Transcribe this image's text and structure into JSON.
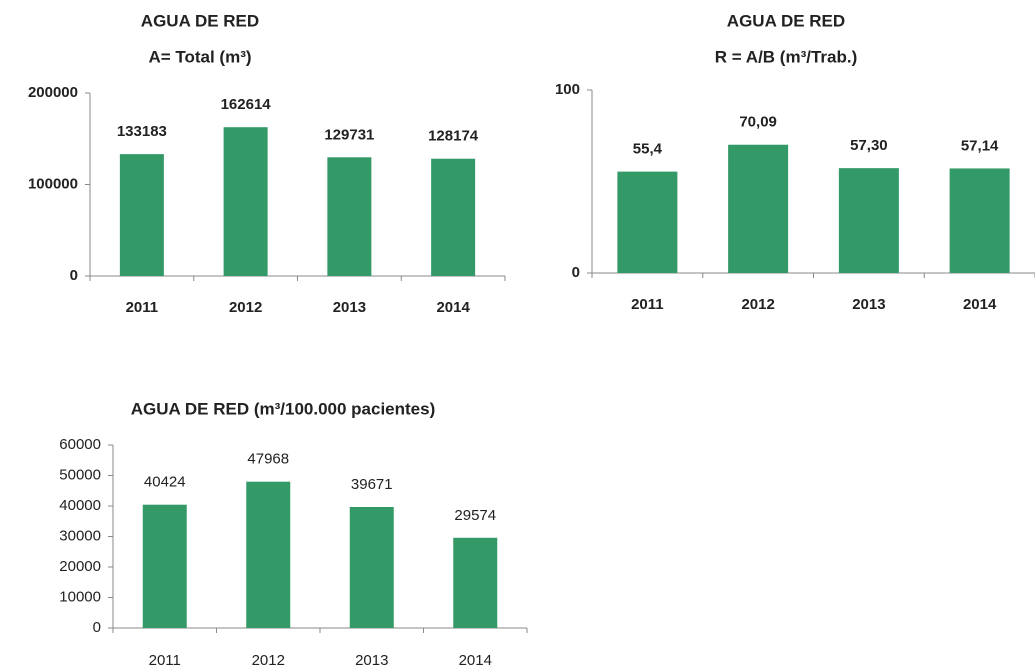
{
  "chart_data": [
    {
      "type": "bar",
      "title": "AGUA DE RED",
      "subtitle": "A= Total (m³)",
      "categories": [
        "2011",
        "2012",
        "2013",
        "2014"
      ],
      "values": [
        133183,
        162614,
        129731,
        128174
      ],
      "color": "#339966",
      "ylim": [
        0,
        200000
      ],
      "yticks": [
        0,
        100000,
        200000
      ]
    },
    {
      "type": "bar",
      "title": "AGUA DE RED",
      "subtitle": "R = A/B (m³/Trab.)",
      "categories": [
        "2011",
        "2012",
        "2013",
        "2014"
      ],
      "values": [
        55.4,
        70.09,
        57.3,
        57.14
      ],
      "value_labels": [
        "55,4",
        "70,09",
        "57,30",
        "57,14"
      ],
      "color": "#339966",
      "ylim": [
        0,
        100
      ],
      "yticks": [
        0,
        100
      ]
    },
    {
      "type": "bar",
      "title": "AGUA DE RED (m³/100.000 pacientes)",
      "categories": [
        "2011",
        "2012",
        "2013",
        "2014"
      ],
      "values": [
        40424,
        47968,
        39671,
        29574
      ],
      "color": "#339966",
      "ylim": [
        0,
        60000
      ],
      "yticks": [
        0,
        10000,
        20000,
        30000,
        40000,
        50000,
        60000
      ]
    }
  ]
}
